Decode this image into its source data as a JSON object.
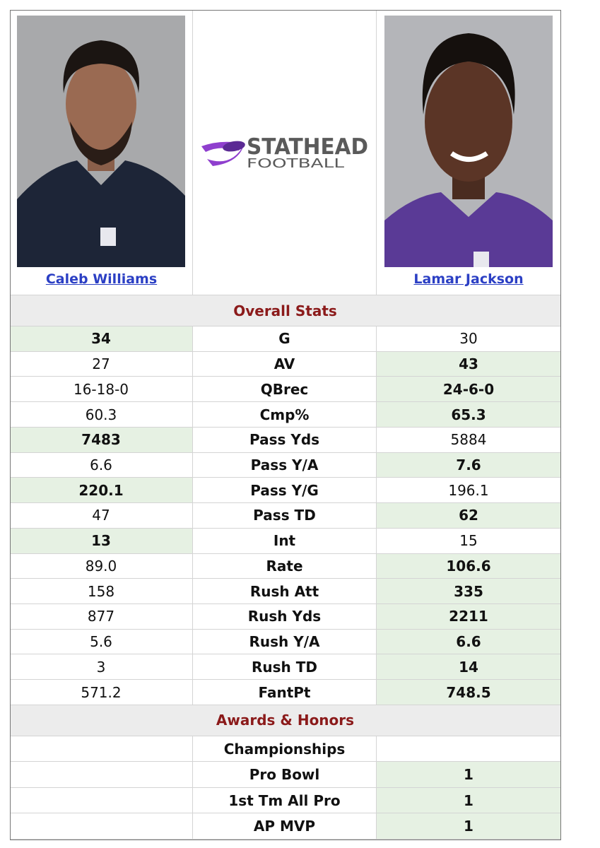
{
  "players": [
    {
      "name": "Caleb Williams"
    },
    {
      "name": "Lamar Jackson"
    }
  ],
  "logo": {
    "line1": "STATHEAD",
    "line2": "FOOTBALL"
  },
  "sections": [
    {
      "title": "Overall Stats",
      "rows": [
        {
          "label": "G",
          "left": "34",
          "right": "30",
          "highlight": "left"
        },
        {
          "label": "AV",
          "left": "27",
          "right": "43",
          "highlight": "right"
        },
        {
          "label": "QBrec",
          "left": "16-18-0",
          "right": "24-6-0",
          "highlight": "right"
        },
        {
          "label": "Cmp%",
          "left": "60.3",
          "right": "65.3",
          "highlight": "right"
        },
        {
          "label": "Pass Yds",
          "left": "7483",
          "right": "5884",
          "highlight": "left"
        },
        {
          "label": "Pass Y/A",
          "left": "6.6",
          "right": "7.6",
          "highlight": "right"
        },
        {
          "label": "Pass Y/G",
          "left": "220.1",
          "right": "196.1",
          "highlight": "left"
        },
        {
          "label": "Pass TD",
          "left": "47",
          "right": "62",
          "highlight": "right"
        },
        {
          "label": "Int",
          "left": "13",
          "right": "15",
          "highlight": "left"
        },
        {
          "label": "Rate",
          "left": "89.0",
          "right": "106.6",
          "highlight": "right"
        },
        {
          "label": "Rush Att",
          "left": "158",
          "right": "335",
          "highlight": "right"
        },
        {
          "label": "Rush Yds",
          "left": "877",
          "right": "2211",
          "highlight": "right"
        },
        {
          "label": "Rush Y/A",
          "left": "5.6",
          "right": "6.6",
          "highlight": "right"
        },
        {
          "label": "Rush TD",
          "left": "3",
          "right": "14",
          "highlight": "right"
        },
        {
          "label": "FantPt",
          "left": "571.2",
          "right": "748.5",
          "highlight": "right"
        }
      ]
    },
    {
      "title": "Awards & Honors",
      "rows": [
        {
          "label": "Championships",
          "left": null,
          "right": null,
          "highlight": null
        },
        {
          "label": "Pro Bowl",
          "left": null,
          "right": "1",
          "highlight": "right"
        },
        {
          "label": "1st Tm All Pro",
          "left": null,
          "right": "1",
          "highlight": "right"
        },
        {
          "label": "AP MVP",
          "left": null,
          "right": "1",
          "highlight": "right"
        }
      ]
    }
  ]
}
